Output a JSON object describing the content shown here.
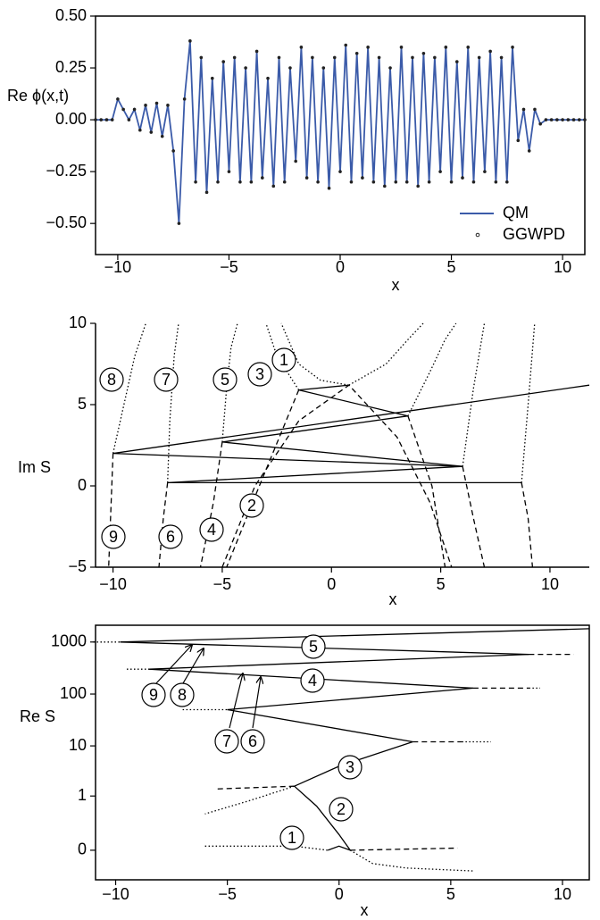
{
  "chart_data": [
    {
      "type": "line",
      "ylabel": "Re ϕ(x,t)",
      "xlabel": "x",
      "box": true,
      "legend": "lower right",
      "xlim": [
        -11,
        11
      ],
      "ylim": [
        -0.65,
        0.5
      ],
      "xticks": [
        {
          "value": -10,
          "label": "−10"
        },
        {
          "value": -5,
          "label": "−5"
        },
        0,
        5,
        10
      ],
      "yticks": [
        {
          "value": -0.5,
          "label": "−0.50"
        },
        {
          "value": -0.25,
          "label": "−0.25"
        },
        {
          "value": 0,
          "label": "0.00"
        },
        {
          "value": 0.25,
          "label": "0.25"
        },
        {
          "value": 0.5,
          "label": "0.50"
        }
      ],
      "x": [
        -11,
        -10.75,
        -10.5,
        -10.25,
        -10,
        -9.75,
        -9.5,
        -9.25,
        -9,
        -8.75,
        -8.5,
        -8.25,
        -8,
        -7.75,
        -7.5,
        -7.25,
        -7,
        -6.75,
        -6.5,
        -6.25,
        -6,
        -5.75,
        -5.5,
        -5.25,
        -5,
        -4.75,
        -4.5,
        -4.25,
        -4,
        -3.75,
        -3.5,
        -3.25,
        -3,
        -2.75,
        -2.5,
        -2.25,
        -2,
        -1.75,
        -1.5,
        -1.25,
        -1,
        -0.75,
        -0.5,
        -0.25,
        0,
        0.25,
        0.5,
        0.75,
        1,
        1.25,
        1.5,
        1.75,
        2,
        2.25,
        2.5,
        2.75,
        3,
        3.25,
        3.5,
        3.75,
        4,
        4.25,
        4.5,
        4.75,
        5,
        5.25,
        5.5,
        5.75,
        6,
        6.25,
        6.5,
        6.75,
        7,
        7.25,
        7.5,
        7.75,
        8,
        8.25,
        8.5,
        8.75,
        9,
        9.25,
        9.5,
        9.75,
        10,
        10.25,
        10.5,
        10.75,
        11
      ],
      "series": [
        {
          "name": "QM",
          "mode": "line",
          "color": "#3b5ba9",
          "values": [
            0,
            0,
            0,
            0,
            0.1,
            0.05,
            0,
            0.05,
            -0.05,
            0.07,
            -0.06,
            0.08,
            -0.08,
            0.07,
            -0.15,
            -0.5,
            0.1,
            0.38,
            -0.3,
            0.3,
            -0.35,
            0.2,
            -0.3,
            0.28,
            -0.25,
            0.3,
            -0.3,
            0.25,
            -0.3,
            0.33,
            -0.28,
            0.2,
            -0.32,
            0.3,
            -0.3,
            0.25,
            -0.2,
            0.35,
            -0.28,
            0.3,
            -0.3,
            0.25,
            -0.33,
            0.3,
            -0.25,
            0.36,
            -0.3,
            0.32,
            -0.28,
            0.35,
            -0.3,
            0.3,
            -0.32,
            0.25,
            -0.3,
            0.35,
            -0.3,
            0.3,
            -0.32,
            0.32,
            -0.3,
            0.3,
            -0.25,
            0.35,
            -0.3,
            0.28,
            -0.28,
            0.35,
            -0.3,
            0.3,
            -0.25,
            0.33,
            -0.3,
            0.3,
            -0.3,
            0.35,
            -0.1,
            0.05,
            -0.15,
            0.05,
            -0.02,
            0,
            0,
            0,
            0,
            0,
            0,
            0,
            0
          ]
        },
        {
          "name": "GGWPD",
          "mode": "markers",
          "color": "#222222",
          "values": [
            0,
            0,
            0,
            0,
            0.1,
            0.05,
            0,
            0.05,
            -0.05,
            0.07,
            -0.06,
            0.08,
            -0.08,
            0.07,
            -0.15,
            -0.5,
            0.1,
            0.38,
            -0.3,
            0.3,
            -0.35,
            0.2,
            -0.3,
            0.28,
            -0.25,
            0.3,
            -0.3,
            0.25,
            -0.3,
            0.33,
            -0.28,
            0.2,
            -0.32,
            0.3,
            -0.3,
            0.25,
            -0.2,
            0.35,
            -0.28,
            0.3,
            -0.3,
            0.25,
            -0.33,
            0.3,
            -0.25,
            0.36,
            -0.3,
            0.32,
            -0.28,
            0.35,
            -0.3,
            0.3,
            -0.32,
            0.25,
            -0.3,
            0.35,
            -0.3,
            0.3,
            -0.32,
            0.32,
            -0.3,
            0.3,
            -0.25,
            0.35,
            -0.3,
            0.28,
            -0.28,
            0.35,
            -0.3,
            0.3,
            -0.25,
            0.33,
            -0.3,
            0.3,
            -0.3,
            0.35,
            -0.1,
            0.05,
            -0.15,
            0.05,
            -0.02,
            0,
            0,
            0,
            0,
            0,
            0,
            0,
            0
          ]
        }
      ]
    },
    {
      "type": "line",
      "ylabel": "Im S",
      "xlabel": "x",
      "box": false,
      "xlim": [
        -10.8,
        11.8
      ],
      "ylim": [
        -5,
        10
      ],
      "xticks": [
        {
          "value": -10,
          "label": "−10"
        },
        {
          "value": -5,
          "label": "−5"
        },
        0,
        5,
        10
      ],
      "yticks": [
        {
          "value": -5,
          "label": "−5"
        },
        0,
        5,
        10
      ],
      "annotations": [
        "1",
        "2",
        "3",
        "4",
        "5",
        "6",
        "7",
        "8",
        "9"
      ],
      "series": [
        {
          "dash": "solid",
          "color": "#000000",
          "x": [
            0.8,
            -1.5,
            3.5,
            -5,
            6,
            -7.5,
            8.7
          ],
          "values": [
            6.2,
            5.9,
            4.3,
            2.7,
            1.2,
            0.2,
            0.2
          ]
        },
        {
          "dash": "solid",
          "color": "#000000",
          "x": [
            11.8,
            -10,
            6
          ],
          "values": [
            6.2,
            2,
            1.2
          ]
        },
        {
          "dash": "dashed",
          "color": "#000000",
          "x": [
            -10,
            -10.2
          ],
          "values": [
            2,
            -5
          ]
        },
        {
          "dash": "dashed",
          "color": "#000000",
          "x": [
            -7.5,
            -7.7,
            -7.9
          ],
          "values": [
            0.2,
            -2,
            -5
          ]
        },
        {
          "dash": "dashed",
          "color": "#000000",
          "x": [
            -5,
            -5.4,
            -6
          ],
          "values": [
            2.7,
            -1,
            -5
          ]
        },
        {
          "dash": "dashed",
          "color": "#000000",
          "x": [
            -5,
            -3.5,
            -1.5,
            0.8,
            3,
            4.5,
            5.5
          ],
          "values": [
            -5,
            0,
            4,
            6.2,
            3,
            -1,
            -5
          ]
        },
        {
          "dash": "dashed",
          "color": "#000000",
          "x": [
            -1.5,
            -3.3,
            -4.8
          ],
          "values": [
            5.9,
            0,
            -5
          ]
        },
        {
          "dash": "dashed",
          "color": "#000000",
          "x": [
            3.5,
            4.6,
            5.2
          ],
          "values": [
            4.3,
            0,
            -5
          ]
        },
        {
          "dash": "dashed",
          "color": "#000000",
          "x": [
            6,
            6.5,
            7
          ],
          "values": [
            1.2,
            -2,
            -5
          ]
        },
        {
          "dash": "dashed",
          "color": "#000000",
          "x": [
            8.7,
            9,
            9.2
          ],
          "values": [
            0.2,
            -2,
            -5
          ]
        },
        {
          "dash": "dotted",
          "color": "#000000",
          "x": [
            -10,
            -9.5,
            -9,
            -8.5
          ],
          "values": [
            2,
            5,
            8,
            10
          ]
        },
        {
          "dash": "dotted",
          "color": "#000000",
          "x": [
            -7.5,
            -7.4,
            -7.2,
            -7
          ],
          "values": [
            0.2,
            4,
            8,
            10
          ]
        },
        {
          "dash": "dotted",
          "color": "#000000",
          "x": [
            -5,
            -4.8,
            -4.6,
            -4.3
          ],
          "values": [
            2.7,
            6,
            8.5,
            10
          ]
        },
        {
          "dash": "dotted",
          "color": "#000000",
          "x": [
            -1.5,
            -2.5,
            -3
          ],
          "values": [
            5.9,
            8,
            10
          ]
        },
        {
          "dash": "dotted",
          "color": "#000000",
          "x": [
            0.8,
            -0.5,
            -1.5,
            -2.3
          ],
          "values": [
            6.2,
            6.5,
            7.5,
            10
          ]
        },
        {
          "dash": "dotted",
          "color": "#000000",
          "x": [
            0.8,
            2.5,
            3.5,
            4.2
          ],
          "values": [
            6.2,
            7.5,
            9,
            10
          ]
        },
        {
          "dash": "dotted",
          "color": "#000000",
          "x": [
            3.5,
            4.5,
            5.2,
            5.7
          ],
          "values": [
            4.3,
            7,
            9,
            10
          ]
        },
        {
          "dash": "dotted",
          "color": "#000000",
          "x": [
            6,
            6.5,
            7
          ],
          "values": [
            1.2,
            6,
            10
          ]
        },
        {
          "dash": "dotted",
          "color": "#000000",
          "x": [
            8.7,
            9,
            9.3
          ],
          "values": [
            0.2,
            5,
            10
          ]
        }
      ]
    },
    {
      "type": "line",
      "ylabel": "Re S",
      "xlabel": "x",
      "box": true,
      "yscale": "symlog",
      "linthresh": 0.1,
      "xlim": [
        -10.9,
        11.2
      ],
      "ylim": [
        -0.27,
        2100
      ],
      "xticks": [
        {
          "value": -10,
          "label": "−10"
        },
        {
          "value": -5,
          "label": "−5"
        },
        0,
        5,
        10
      ],
      "yticks": [
        0,
        1,
        10,
        100,
        1000
      ],
      "annotations": [
        "1",
        "2",
        "3",
        "4",
        "5",
        "6",
        "7",
        "8",
        "9"
      ],
      "series": [
        {
          "dash": "solid",
          "color": "#000000",
          "x": [
            -9.8,
            11.2
          ],
          "values": [
            1000,
            1800
          ]
        },
        {
          "dash": "solid",
          "color": "#000000",
          "x": [
            -9.8,
            8.5
          ],
          "values": [
            1000,
            580
          ]
        },
        {
          "dash": "solid",
          "color": "#000000",
          "x": [
            -8.5,
            8.5
          ],
          "values": [
            300,
            580
          ]
        },
        {
          "dash": "solid",
          "color": "#000000",
          "x": [
            -8.5,
            6
          ],
          "values": [
            300,
            130
          ]
        },
        {
          "dash": "solid",
          "color": "#000000",
          "x": [
            -5,
            6
          ],
          "values": [
            50,
            130
          ]
        },
        {
          "dash": "solid",
          "color": "#000000",
          "x": [
            -5,
            3.3
          ],
          "values": [
            50,
            12
          ]
        },
        {
          "dash": "solid",
          "color": "#000000",
          "x": [
            3.3,
            0,
            -2
          ],
          "values": [
            12,
            4,
            1.6
          ]
        },
        {
          "dash": "solid",
          "color": "#000000",
          "x": [
            -2,
            -1,
            0,
            0.5
          ],
          "values": [
            1.6,
            0.6,
            0.1,
            0
          ]
        },
        {
          "dash": "solid",
          "color": "#000000",
          "x": [
            -0.5,
            0,
            0.5
          ],
          "values": [
            0,
            0.02,
            0
          ]
        },
        {
          "dash": "dashed",
          "color": "#000000",
          "x": [
            8.5,
            10.5
          ],
          "values": [
            580,
            580
          ]
        },
        {
          "dash": "dashed",
          "color": "#000000",
          "x": [
            6,
            8.5
          ],
          "values": [
            130,
            130
          ]
        },
        {
          "dash": "dashed",
          "color": "#000000",
          "x": [
            3.3,
            5.5
          ],
          "values": [
            12,
            12
          ]
        },
        {
          "dash": "dashed",
          "color": "#000000",
          "x": [
            -2,
            -5.5
          ],
          "values": [
            1.6,
            1.4
          ]
        },
        {
          "dash": "dashed",
          "color": "#000000",
          "x": [
            0.5,
            5.3
          ],
          "values": [
            0,
            0.01
          ]
        },
        {
          "dash": "dotted",
          "color": "#000000",
          "x": [
            -11,
            -9.8
          ],
          "values": [
            1000,
            1000
          ]
        },
        {
          "dash": "dotted",
          "color": "#000000",
          "x": [
            -9.5,
            -8.5
          ],
          "values": [
            300,
            300
          ]
        },
        {
          "dash": "dotted",
          "color": "#000000",
          "x": [
            -7,
            -5
          ],
          "values": [
            50,
            50
          ]
        },
        {
          "dash": "dotted",
          "color": "#000000",
          "x": [
            5.5,
            6.8
          ],
          "values": [
            12,
            12
          ]
        },
        {
          "dash": "dotted",
          "color": "#000000",
          "x": [
            8.5,
            9
          ],
          "values": [
            130,
            130
          ]
        },
        {
          "dash": "dotted",
          "color": "#000000",
          "x": [
            -2,
            -4,
            -6
          ],
          "values": [
            1.6,
            0.8,
            0.4
          ]
        },
        {
          "dash": "dotted",
          "color": "#000000",
          "x": [
            0.5,
            1.5,
            3,
            6
          ],
          "values": [
            0,
            -0.08,
            -0.12,
            -0.15
          ]
        },
        {
          "dash": "dotted",
          "color": "#000000",
          "x": [
            -6,
            -2,
            -0.5
          ],
          "values": [
            0.02,
            0.02,
            0
          ]
        }
      ]
    }
  ]
}
